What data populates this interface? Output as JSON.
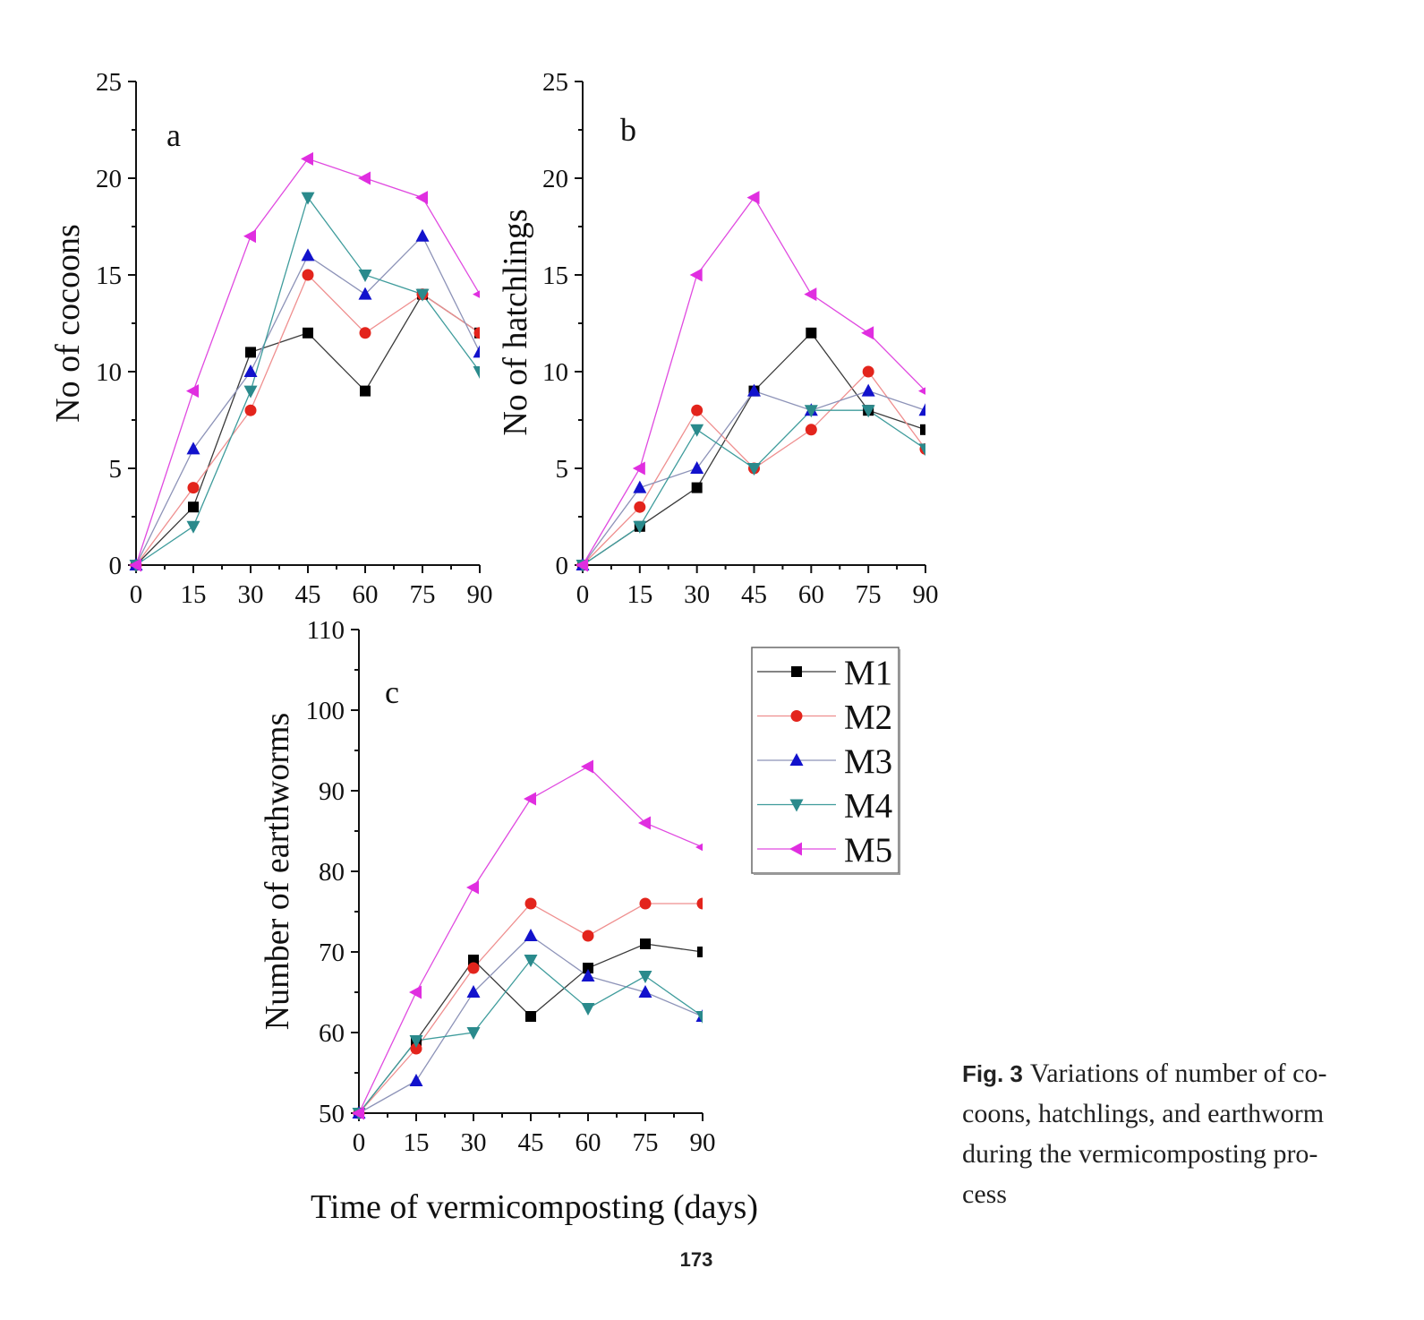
{
  "chart_data": [
    {
      "panel": "a",
      "type": "line",
      "xlabel": "",
      "ylabel": "No of cocoons",
      "x": [
        0,
        15,
        30,
        45,
        60,
        75,
        90
      ],
      "xticks": [
        0,
        15,
        30,
        45,
        60,
        75,
        90
      ],
      "xlim": [
        0,
        90
      ],
      "ylim": [
        0,
        25
      ],
      "yticks": [
        0,
        5,
        10,
        15,
        20,
        25
      ],
      "series": [
        {
          "name": "M1",
          "values": [
            0,
            3,
            11,
            12,
            9,
            14,
            12
          ]
        },
        {
          "name": "M2",
          "values": [
            0,
            4,
            8,
            15,
            12,
            14,
            12
          ]
        },
        {
          "name": "M3",
          "values": [
            0,
            6,
            10,
            16,
            14,
            17,
            11
          ]
        },
        {
          "name": "M4",
          "values": [
            0,
            2,
            9,
            19,
            15,
            14,
            10
          ]
        },
        {
          "name": "M5",
          "values": [
            0,
            9,
            17,
            21,
            20,
            19,
            14
          ]
        }
      ]
    },
    {
      "panel": "b",
      "type": "line",
      "xlabel": "",
      "ylabel": "No of hatchlings",
      "x": [
        0,
        15,
        30,
        45,
        60,
        75,
        90
      ],
      "xticks": [
        0,
        15,
        30,
        45,
        60,
        75,
        90
      ],
      "xlim": [
        0,
        90
      ],
      "ylim": [
        0,
        25
      ],
      "yticks": [
        0,
        5,
        10,
        15,
        20,
        25
      ],
      "series": [
        {
          "name": "M1",
          "values": [
            0,
            2,
            4,
            9,
            12,
            8,
            7
          ]
        },
        {
          "name": "M2",
          "values": [
            0,
            3,
            8,
            5,
            7,
            10,
            6
          ]
        },
        {
          "name": "M3",
          "values": [
            0,
            4,
            5,
            9,
            8,
            9,
            8
          ]
        },
        {
          "name": "M4",
          "values": [
            0,
            2,
            7,
            5,
            8,
            8,
            6
          ]
        },
        {
          "name": "M5",
          "values": [
            0,
            5,
            15,
            19,
            14,
            12,
            9
          ]
        }
      ]
    },
    {
      "panel": "c",
      "type": "line",
      "xlabel": "Time of vermicomposting (days)",
      "ylabel": "Number of earthworms",
      "x": [
        0,
        15,
        30,
        45,
        60,
        75,
        90
      ],
      "xticks": [
        0,
        15,
        30,
        45,
        60,
        75,
        90
      ],
      "xlim": [
        0,
        90
      ],
      "ylim": [
        50,
        110
      ],
      "yticks": [
        50,
        60,
        70,
        80,
        90,
        100,
        110
      ],
      "series": [
        {
          "name": "M1",
          "values": [
            50,
            59,
            69,
            62,
            68,
            71,
            70
          ]
        },
        {
          "name": "M2",
          "values": [
            50,
            58,
            68,
            76,
            72,
            76,
            76
          ]
        },
        {
          "name": "M3",
          "values": [
            50,
            54,
            65,
            72,
            67,
            65,
            62
          ]
        },
        {
          "name": "M4",
          "values": [
            50,
            59,
            60,
            69,
            63,
            67,
            62
          ]
        },
        {
          "name": "M5",
          "values": [
            50,
            65,
            78,
            89,
            93,
            86,
            83
          ]
        }
      ]
    }
  ],
  "legend": {
    "entries": [
      "M1",
      "M2",
      "M3",
      "M4",
      "M5"
    ]
  },
  "series_style": [
    {
      "marker": "square",
      "marker_color": "#000000",
      "line_color": "#3a3a3a"
    },
    {
      "marker": "circle",
      "marker_color": "#e3241c",
      "line_color": "#ef8f8f"
    },
    {
      "marker": "triangle-up",
      "marker_color": "#1212cc",
      "line_color": "#8d93b8"
    },
    {
      "marker": "triangle-down",
      "marker_color": "#2a8a8c",
      "line_color": "#3f9c9c"
    },
    {
      "marker": "triangle-left",
      "marker_color": "#e02ee0",
      "line_color": "#e04ae0"
    }
  ],
  "caption": {
    "label": "Fig. 3",
    "lines": [
      "Variations of number of co-",
      "coons, hatchlings, and earthworm",
      "during the vermicomposting pro-",
      "cess"
    ]
  },
  "page_number": "173"
}
